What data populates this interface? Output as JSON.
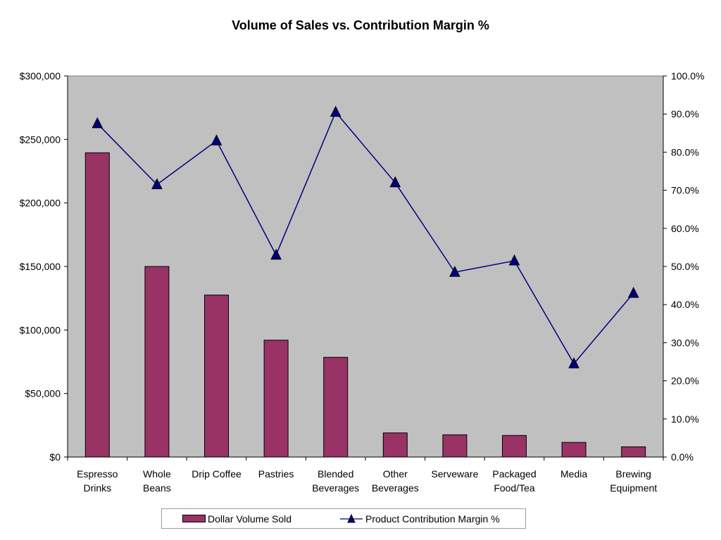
{
  "chart_data": {
    "type": "bar",
    "title": "Volume of Sales vs. Contribution Margin %",
    "categories": [
      [
        "Espresso",
        "Drinks"
      ],
      [
        "Whole",
        "Beans"
      ],
      [
        "Drip Coffee"
      ],
      [
        "Pastries"
      ],
      [
        "Blended",
        "Beverages"
      ],
      [
        "Other",
        "Beverages"
      ],
      [
        "Serveware"
      ],
      [
        "Packaged",
        "Food/Tea"
      ],
      [
        "Media"
      ],
      [
        "Brewing",
        "Equipment"
      ]
    ],
    "series": [
      {
        "name": "Dollar Volume Sold",
        "type": "bar",
        "axis": "left",
        "color": "#993366",
        "values": [
          239500,
          150000,
          127500,
          92000,
          78500,
          19000,
          17500,
          17000,
          11500,
          8000
        ]
      },
      {
        "name": "Product Contribution Margin %",
        "type": "line",
        "axis": "right",
        "color": "#000080",
        "marker": "triangle",
        "values": [
          87.5,
          71.5,
          83.0,
          53.0,
          90.5,
          72.0,
          48.5,
          51.5,
          24.5,
          43.0
        ]
      }
    ],
    "y_left": {
      "min": 0,
      "max": 300000,
      "ticks": [
        "$0",
        "$50,000",
        "$100,000",
        "$150,000",
        "$200,000",
        "$250,000",
        "$300,000"
      ]
    },
    "y_right": {
      "min": 0,
      "max": 100,
      "ticks": [
        "0.0%",
        "10.0%",
        "20.0%",
        "30.0%",
        "40.0%",
        "50.0%",
        "60.0%",
        "70.0%",
        "80.0%",
        "90.0%",
        "100.0%"
      ]
    },
    "plot_background": "#c0c0c0",
    "grid": false,
    "legend_position": "bottom"
  }
}
